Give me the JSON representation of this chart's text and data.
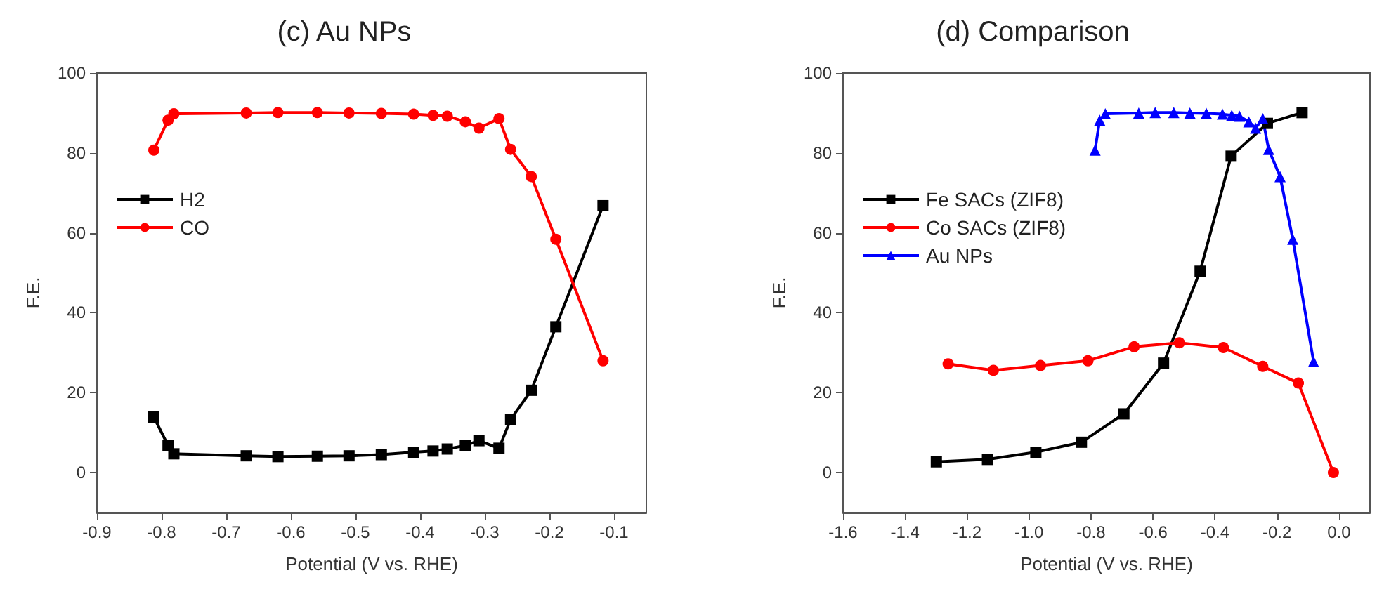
{
  "chart_data": [
    {
      "type": "line",
      "title": "(c) Au NPs",
      "xlabel": "Potential (V vs. RHE)",
      "ylabel": "F.E.",
      "xlim": [
        -0.9,
        -0.05
      ],
      "xticks": [
        -0.9,
        -0.8,
        -0.7,
        -0.6,
        -0.5,
        -0.4,
        -0.3,
        -0.2,
        -0.1
      ],
      "ylim": [
        -10,
        100
      ],
      "yticks": [
        0,
        20,
        40,
        60,
        80,
        100
      ],
      "grid": false,
      "legend": "left",
      "x": [
        -0.812,
        -0.79,
        -0.781,
        -0.669,
        -0.62,
        -0.559,
        -0.51,
        -0.46,
        -0.41,
        -0.38,
        -0.358,
        -0.33,
        -0.309,
        -0.278,
        -0.26,
        -0.228,
        -0.19,
        -0.117
      ],
      "series": [
        {
          "name": "H2",
          "color": "#000000",
          "marker": "square",
          "values": [
            13.9,
            6.8,
            4.7,
            4.2,
            4,
            4.1,
            4.2,
            4.5,
            5.1,
            5.4,
            5.9,
            6.8,
            8,
            6.1,
            13.3,
            20.6,
            36.5,
            66.8
          ]
        },
        {
          "name": "CO",
          "color": "#ff0000",
          "marker": "circle",
          "values": [
            80.7,
            88.2,
            89.8,
            90,
            90.1,
            90.1,
            90,
            89.9,
            89.7,
            89.4,
            89.2,
            87.8,
            86.2,
            88.6,
            80.9,
            74.1,
            58.4,
            28
          ]
        }
      ]
    },
    {
      "type": "line",
      "title": "(d) Comparison",
      "xlabel": "Potential (V vs. RHE)",
      "ylabel": "F.E.",
      "xlim": [
        -1.6,
        0.1
      ],
      "xticks": [
        -1.6,
        -1.4,
        -1.2,
        {
          "value": -1,
          "label": "-1.0"
        },
        -0.8,
        -0.6,
        -0.4,
        -0.2,
        {
          "value": 0,
          "label": "0.0"
        }
      ],
      "ylim": [
        -10,
        100
      ],
      "yticks": [
        0,
        20,
        40,
        60,
        80,
        100
      ],
      "grid": false,
      "legend": "left",
      "series": [
        {
          "name": "Fe SACs (ZIF8)",
          "color": "#000000",
          "marker": "square",
          "x": [
            -1.299,
            -1.134,
            -0.978,
            -0.831,
            -0.694,
            -0.566,
            -0.448,
            -0.348,
            -0.231,
            -0.119
          ],
          "values": [
            2.7,
            3.3,
            5.1,
            7.6,
            14.7,
            27.4,
            50.4,
            79.2,
            87.4,
            90.1
          ]
        },
        {
          "name": "Co SACs (ZIF8)",
          "color": "#ff0000",
          "marker": "circle",
          "x": [
            -1.261,
            -1.115,
            -0.963,
            -0.81,
            -0.661,
            -0.515,
            -0.373,
            -0.246,
            -0.131,
            -0.018
          ],
          "values": [
            27.2,
            25.6,
            26.8,
            28,
            31.5,
            32.5,
            31.3,
            26.6,
            22.4,
            0
          ]
        },
        {
          "name": "Au NPs",
          "color": "#0000ff",
          "marker": "triangle",
          "x": [
            -0.787,
            -0.772,
            -0.754,
            -0.646,
            -0.593,
            -0.533,
            -0.481,
            -0.428,
            -0.376,
            -0.346,
            -0.321,
            -0.291,
            -0.269,
            -0.246,
            -0.227,
            -0.19,
            -0.149,
            -0.082
          ],
          "values": [
            80.7,
            88.2,
            89.8,
            90,
            90.1,
            90.1,
            90,
            89.9,
            89.7,
            89.4,
            89.2,
            87.8,
            86.2,
            88.6,
            80.9,
            74.1,
            58.4,
            27.8
          ]
        }
      ]
    }
  ]
}
